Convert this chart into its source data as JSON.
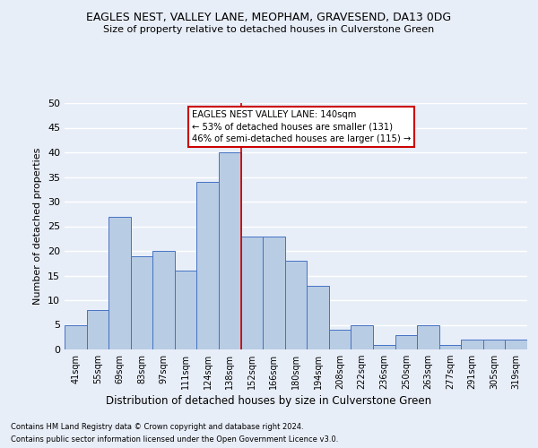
{
  "title1": "EAGLES NEST, VALLEY LANE, MEOPHAM, GRAVESEND, DA13 0DG",
  "title2": "Size of property relative to detached houses in Culverstone Green",
  "xlabel": "Distribution of detached houses by size in Culverstone Green",
  "ylabel": "Number of detached properties",
  "footnote1": "Contains HM Land Registry data © Crown copyright and database right 2024.",
  "footnote2": "Contains public sector information licensed under the Open Government Licence v3.0.",
  "annotation_line1": "EAGLES NEST VALLEY LANE: 140sqm",
  "annotation_line2": "← 53% of detached houses are smaller (131)",
  "annotation_line3": "46% of semi-detached houses are larger (115) →",
  "categories": [
    "41sqm",
    "55sqm",
    "69sqm",
    "83sqm",
    "97sqm",
    "111sqm",
    "124sqm",
    "138sqm",
    "152sqm",
    "166sqm",
    "180sqm",
    "194sqm",
    "208sqm",
    "222sqm",
    "236sqm",
    "250sqm",
    "263sqm",
    "277sqm",
    "291sqm",
    "305sqm",
    "319sqm"
  ],
  "values": [
    5,
    8,
    27,
    19,
    20,
    16,
    34,
    40,
    23,
    23,
    18,
    13,
    4,
    5,
    1,
    3,
    5,
    1,
    2,
    2,
    2
  ],
  "bar_color": "#b8cce4",
  "bar_edge_color": "#4472c4",
  "vline_color": "#cc0000",
  "vline_index": 7,
  "annotation_box_edge_color": "#cc0000",
  "annotation_box_face_color": "#ffffff",
  "background_color": "#e8eef8",
  "grid_color": "#ffffff",
  "ylim": [
    0,
    50
  ],
  "yticks": [
    0,
    5,
    10,
    15,
    20,
    25,
    30,
    35,
    40,
    45,
    50
  ]
}
